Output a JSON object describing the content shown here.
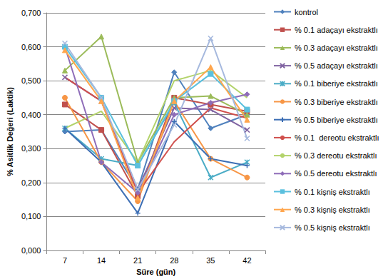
{
  "chart_data": {
    "type": "line",
    "x_label": "Süre (gün)",
    "y_label": "% Asitlik Değeri (Laktik)",
    "categories": [
      "7",
      "14",
      "21",
      "28",
      "35",
      "42"
    ],
    "ylim": [
      0,
      0.7
    ],
    "yticks": [
      {
        "value": 0,
        "label": "0,000"
      },
      {
        "value": 0.1,
        "label": "0,100"
      },
      {
        "value": 0.2,
        "label": "0,200"
      },
      {
        "value": 0.3,
        "label": "0,300"
      },
      {
        "value": 0.4,
        "label": "0,400"
      },
      {
        "value": 0.5,
        "label": "0,500"
      },
      {
        "value": 0.6,
        "label": "0,600"
      },
      {
        "value": 0.7,
        "label": "0,700"
      }
    ],
    "grid": true,
    "legend": "right",
    "series": [
      {
        "name": "kontrol",
        "color": "#4F81BD",
        "marker": "diamond",
        "values": [
          0.35,
          0.355,
          0.18,
          0.525,
          0.36,
          0.4
        ]
      },
      {
        "name": "% 0.1 adaçayı ekstraktlı",
        "color": "#C0504D",
        "marker": "square",
        "values": [
          0.43,
          0.355,
          0.16,
          0.45,
          0.43,
          0.41
        ]
      },
      {
        "name": "% 0.3 adaçayı ekstraktlı",
        "color": "#9BBB59",
        "marker": "triangle",
        "values": [
          0.53,
          0.63,
          0.26,
          0.45,
          0.455,
          0.4
        ]
      },
      {
        "name": "% 0.5 adaçayı ekstraktlı",
        "color": "#8064A2",
        "marker": "x",
        "values": [
          0.51,
          0.44,
          0.18,
          0.42,
          0.415,
          0.355
        ]
      },
      {
        "name": "% 0.1 biberiye ekstraktlı",
        "color": "#4BACC6",
        "marker": "asterisk",
        "values": [
          0.36,
          0.27,
          0.25,
          0.435,
          0.215,
          0.26
        ]
      },
      {
        "name": "% 0.3 biberiye ekstraktlı",
        "color": "#F79646",
        "marker": "circle",
        "values": [
          0.45,
          0.26,
          0.145,
          0.44,
          0.27,
          0.215
        ]
      },
      {
        "name": "% 0.5 biberiye ekstraktlı",
        "color": "#3C6EB4",
        "marker": "plus",
        "values": [
          0.36,
          0.26,
          0.11,
          0.38,
          0.27,
          0.25
        ]
      },
      {
        "name": "% 0.1  dereotu ekstraktlı",
        "color": "#D0504D",
        "marker": "none",
        "values": [
          0.51,
          0.44,
          0.17,
          0.32,
          0.42,
          0.39
        ]
      },
      {
        "name": "% 0.3 dereotu ekstraktlı",
        "color": "#B3D36B",
        "marker": "none",
        "values": [
          0.36,
          0.41,
          0.26,
          0.5,
          0.53,
          0.45
        ]
      },
      {
        "name": "% 0.5 dereotu ekstraktlı",
        "color": "#8E6CB8",
        "marker": "diamond",
        "values": [
          0.6,
          0.26,
          0.17,
          0.4,
          0.435,
          0.46
        ]
      },
      {
        "name": "% 0.1 kişniş ekstraktlı",
        "color": "#5BC0DE",
        "marker": "square",
        "values": [
          0.6,
          0.45,
          0.25,
          0.44,
          0.52,
          0.415
        ]
      },
      {
        "name": "% 0.3 kişniş ekstraktlı",
        "color": "#FFA64D",
        "marker": "triangle",
        "values": [
          0.59,
          0.44,
          0.155,
          0.44,
          0.54,
          0.385
        ]
      },
      {
        "name": "% 0.5 kişniş ekstraktlı",
        "color": "#A6B9DE",
        "marker": "x",
        "values": [
          0.61,
          0.45,
          0.18,
          0.37,
          0.625,
          0.33
        ]
      }
    ]
  }
}
